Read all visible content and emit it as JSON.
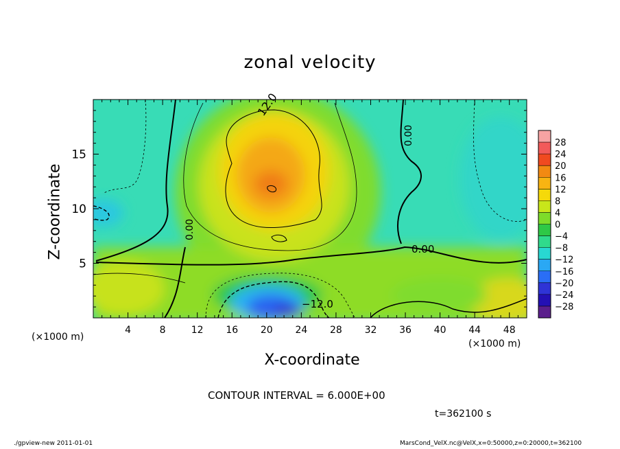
{
  "chart_data": {
    "type": "heatmap",
    "title": "zonal velocity",
    "xlabel": "X-coordinate",
    "ylabel": "Z-coordinate",
    "x_unit": "(×1000 m)",
    "xlim": [
      0,
      50
    ],
    "ylim": [
      0,
      20
    ],
    "x_ticks": [
      "4",
      "8",
      "12",
      "16",
      "20",
      "24",
      "28",
      "32",
      "36",
      "40",
      "44",
      "48"
    ],
    "y_ticks": [
      "5",
      "10",
      "15"
    ],
    "colorbar": {
      "labels": [
        "28",
        "24",
        "20",
        "16",
        "12",
        "8",
        "4",
        "0",
        "−4",
        "−8",
        "−12",
        "−16",
        "−20",
        "−24",
        "−28"
      ],
      "colors": [
        "#f7a3a3",
        "#f25a5a",
        "#f04a20",
        "#f28a12",
        "#f8b412",
        "#f5d90a",
        "#c8e61a",
        "#7ddc2a",
        "#2ec846",
        "#30da8c",
        "#28d8d2",
        "#2aa8f4",
        "#2a6ef6",
        "#2f34d6",
        "#2410b4",
        "#5b1f8c"
      ]
    },
    "contour_labels": [
      "12.0",
      "0.00",
      "0.00",
      "0.00",
      "−12.0"
    ],
    "contour_interval_text": "CONTOUR INTERVAL = 6.000E+00",
    "time_text": "t=362100 s"
  },
  "footer": {
    "left": "./gpview-new   2011-01-01",
    "right": "MarsCond_VelX.nc@VelX,x=0:50000,z=0:20000,t=362100"
  }
}
